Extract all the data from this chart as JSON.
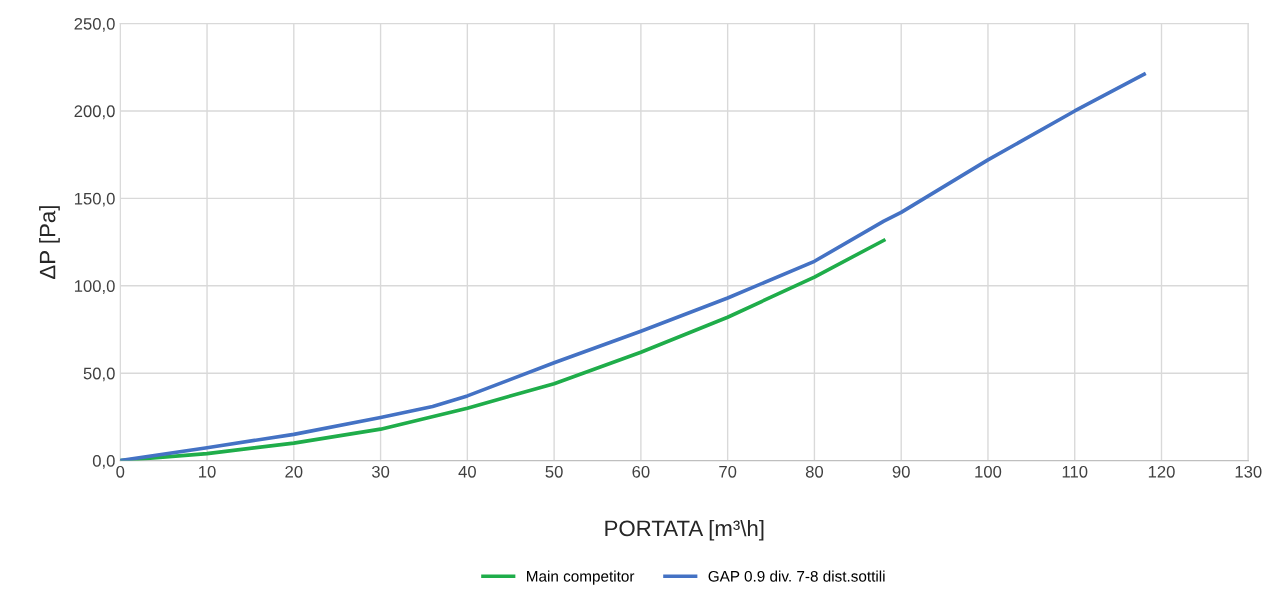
{
  "chart_data": {
    "type": "line",
    "xlabel": "PORTATA [m³\\h]",
    "ylabel": "ΔP [Pa]",
    "xlim": [
      0,
      130
    ],
    "xticks": [
      0,
      10,
      20,
      30,
      40,
      50,
      60,
      70,
      80,
      90,
      100,
      110,
      120,
      130
    ],
    "ylim": [
      0,
      250
    ],
    "yticks": [
      {
        "value": 0,
        "label": "0,0"
      },
      {
        "value": 50,
        "label": "50,0"
      },
      {
        "value": 100,
        "label": "100,0"
      },
      {
        "value": 150,
        "label": "150,0"
      },
      {
        "value": 200,
        "label": "200,0"
      },
      {
        "value": 250,
        "label": "250,0"
      }
    ],
    "grid": true,
    "legend": "bottom",
    "marker": "none",
    "line_style": "solid",
    "series": [
      {
        "name": "Main competitor",
        "color": "#1fad4a",
        "x": [
          0,
          10,
          20,
          30,
          40,
          50,
          60,
          70,
          80,
          88
        ],
        "values": [
          0,
          4,
          10,
          18,
          30,
          44,
          62,
          82,
          105,
          126
        ]
      },
      {
        "name": "GAP 0.9 div. 7-8 dist.sottili",
        "color": "#4472c4",
        "x": [
          0,
          10,
          20,
          30,
          36,
          40,
          50,
          60,
          70,
          80,
          88,
          90,
          100,
          110,
          118
        ],
        "values": [
          0,
          7.4,
          15,
          24.6,
          31,
          37,
          56,
          74,
          93,
          114,
          137,
          142,
          172,
          200,
          221
        ]
      }
    ]
  }
}
